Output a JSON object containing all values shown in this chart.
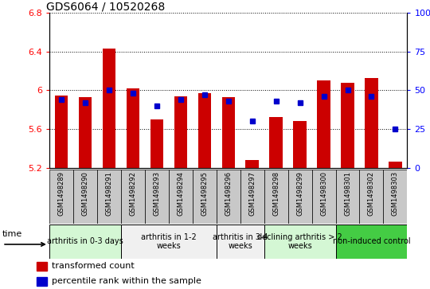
{
  "title": "GDS6064 / 10520268",
  "samples": [
    "GSM1498289",
    "GSM1498290",
    "GSM1498291",
    "GSM1498292",
    "GSM1498293",
    "GSM1498294",
    "GSM1498295",
    "GSM1498296",
    "GSM1498297",
    "GSM1498298",
    "GSM1498299",
    "GSM1498300",
    "GSM1498301",
    "GSM1498302",
    "GSM1498303"
  ],
  "transformed_count": [
    5.95,
    5.93,
    6.43,
    6.02,
    5.7,
    5.94,
    5.97,
    5.93,
    5.28,
    5.72,
    5.68,
    6.1,
    6.08,
    6.13,
    5.26
  ],
  "percentile_rank": [
    44,
    42,
    50,
    48,
    40,
    44,
    47,
    43,
    30,
    43,
    42,
    46,
    50,
    46,
    25
  ],
  "ylim_left": [
    5.2,
    6.8
  ],
  "ylim_right": [
    0,
    100
  ],
  "yticks_left": [
    5.2,
    5.6,
    6.0,
    6.4,
    6.8
  ],
  "yticks_right": [
    0,
    25,
    50,
    75,
    100
  ],
  "ytick_labels_left": [
    "5.2",
    "5.6",
    "6",
    "6.4",
    "6.8"
  ],
  "ytick_labels_right": [
    "0",
    "25",
    "50",
    "75",
    "100%"
  ],
  "groups": [
    {
      "label": "arthritis in 0-3 days",
      "indices": [
        0,
        1,
        2
      ],
      "color": "#d4f7d4"
    },
    {
      "label": "arthritis in 1-2\nweeks",
      "indices": [
        3,
        4,
        5,
        6
      ],
      "color": "#f0f0f0"
    },
    {
      "label": "arthritis in 3-4\nweeks",
      "indices": [
        7,
        8
      ],
      "color": "#f0f0f0"
    },
    {
      "label": "declining arthritis > 2\nweeks",
      "indices": [
        9,
        10,
        11
      ],
      "color": "#d4f7d4"
    },
    {
      "label": "non-induced control",
      "indices": [
        12,
        13,
        14
      ],
      "color": "#44cc44"
    }
  ],
  "bar_color": "#cc0000",
  "dot_color": "#0000cc",
  "bar_bottom": 5.2,
  "plot_bg": "#ffffff",
  "sample_bg": "#c8c8c8",
  "legend_red_label": "transformed count",
  "legend_blue_label": "percentile rank within the sample",
  "time_label": "time",
  "title_fontsize": 10,
  "axis_fontsize": 8,
  "sample_fontsize": 6,
  "group_fontsize": 7,
  "legend_fontsize": 8
}
